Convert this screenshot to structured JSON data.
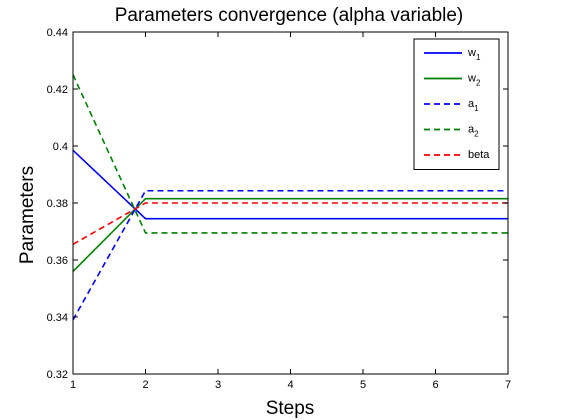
{
  "chart_data": {
    "type": "line",
    "title": "Parameters convergence (alpha variable)",
    "xlabel": "Steps",
    "ylabel": "Parameters",
    "xlim": [
      1,
      7
    ],
    "ylim": [
      0.32,
      0.44
    ],
    "x_ticks": [
      1,
      2,
      3,
      4,
      5,
      6,
      7
    ],
    "y_ticks": [
      0.32,
      0.34,
      0.36,
      0.38,
      0.4,
      0.42,
      0.44
    ],
    "y_tick_labels": [
      "0.32",
      "0.34",
      "0.36",
      "0.38",
      "0.4",
      "0.42",
      "0.44"
    ],
    "grid": false,
    "legend_position": "top-right",
    "x": [
      1,
      2,
      3,
      4,
      5,
      6,
      7
    ],
    "series": [
      {
        "name": "w",
        "subscript": "1",
        "color": "#0000ff",
        "dash": "solid",
        "values": [
          0.3985,
          0.3745,
          0.3745,
          0.3745,
          0.3745,
          0.3745,
          0.3745
        ]
      },
      {
        "name": "w",
        "subscript": "2",
        "color": "#008000",
        "dash": "solid",
        "values": [
          0.356,
          0.3815,
          0.3815,
          0.3815,
          0.3815,
          0.3815,
          0.3815
        ]
      },
      {
        "name": "a",
        "subscript": "1",
        "color": "#0000ff",
        "dash": "dashed",
        "values": [
          0.339,
          0.3843,
          0.3843,
          0.3843,
          0.3843,
          0.3843,
          0.3843
        ]
      },
      {
        "name": "a",
        "subscript": "2",
        "color": "#008000",
        "dash": "dashed",
        "values": [
          0.425,
          0.3695,
          0.3695,
          0.3695,
          0.3695,
          0.3695,
          0.3695
        ]
      },
      {
        "name": "beta",
        "subscript": "",
        "color": "#ff0000",
        "dash": "dashed",
        "values": [
          0.3655,
          0.38,
          0.38,
          0.38,
          0.38,
          0.38,
          0.38
        ]
      }
    ]
  }
}
